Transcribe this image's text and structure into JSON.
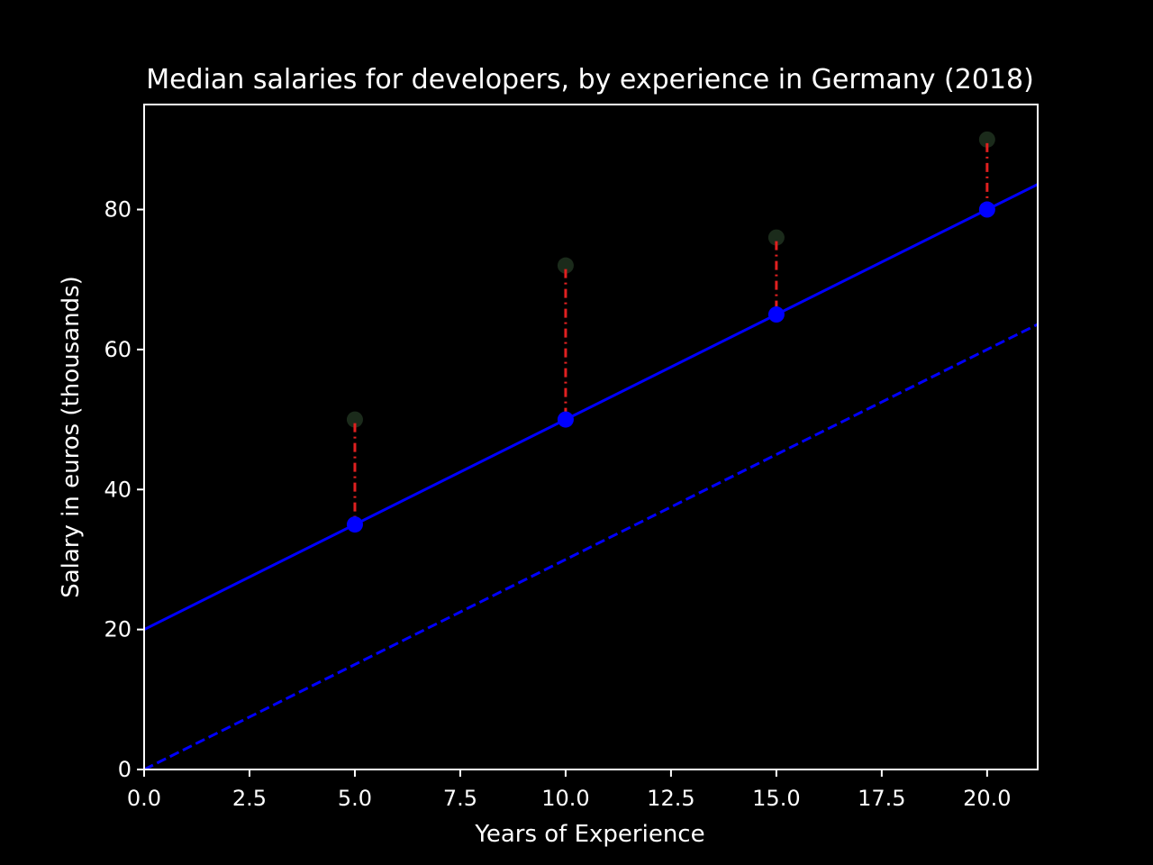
{
  "chart_data": {
    "type": "scatter",
    "title": "Median salaries for developers, by experience in Germany (2018)",
    "xlabel": "Years of Experience",
    "ylabel": "Salary in euros (thousands)",
    "xlim": [
      0,
      21.2
    ],
    "ylim": [
      0,
      95
    ],
    "xticks": [
      0,
      2.5,
      5,
      7.5,
      10,
      12.5,
      15,
      17.5,
      20
    ],
    "xtick_labels": [
      "0.0",
      "2.5",
      "5.0",
      "7.5",
      "10.0",
      "12.5",
      "15.0",
      "17.5",
      "20.0"
    ],
    "yticks": [
      0,
      20,
      40,
      60,
      80
    ],
    "ytick_labels": [
      "0",
      "20",
      "40",
      "60",
      "80"
    ],
    "grid": false,
    "colors": {
      "background": "#000000",
      "axes": "#ffffff",
      "fit_line": "#0000ff",
      "baseline": "#0000ff",
      "observed_points": "#1b2b1b",
      "residuals": "#e02020"
    },
    "series": [
      {
        "kind": "observed-points",
        "x": [
          5,
          10,
          15,
          20
        ],
        "y": [
          50,
          72,
          76,
          90
        ]
      },
      {
        "kind": "fit-line-solid",
        "x": [
          0,
          21.2
        ],
        "y": [
          20,
          83.6
        ]
      },
      {
        "kind": "fit-points",
        "x": [
          5,
          10,
          15,
          20
        ],
        "y": [
          35,
          50,
          65,
          80
        ]
      },
      {
        "kind": "baseline-dashed",
        "x": [
          0,
          21.2
        ],
        "y": [
          0,
          63.6
        ]
      }
    ],
    "residuals": {
      "x": [
        5,
        10,
        15,
        20
      ],
      "y_from": [
        50,
        72,
        76,
        90
      ],
      "y_to": [
        35,
        50,
        65,
        80
      ]
    }
  }
}
